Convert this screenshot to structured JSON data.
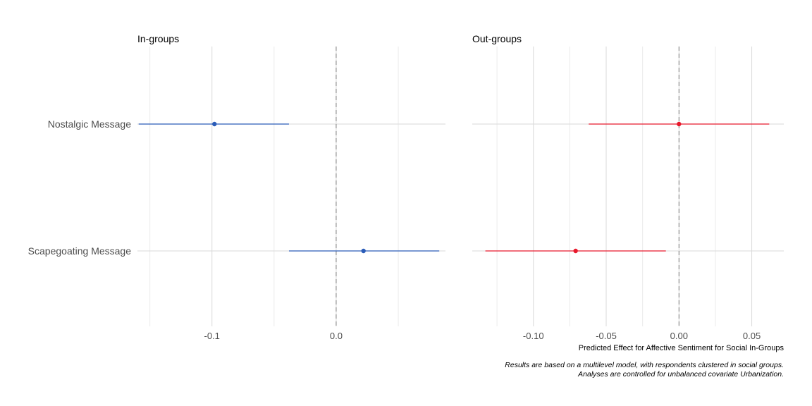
{
  "chart_data": [
    {
      "type": "scatter",
      "subtype": "coefficient-plot",
      "title": "In-groups",
      "color": "#2a5cb8",
      "categories": [
        "Nostalgic Message",
        "Scapegoating Message"
      ],
      "estimates": [
        -0.098,
        0.022
      ],
      "ci_low": [
        -0.159,
        -0.038
      ],
      "ci_high": [
        -0.038,
        0.083
      ],
      "xticks": [
        -0.1,
        0.0
      ],
      "xtick_labels": [
        "-0.1",
        "0.0"
      ],
      "xlim": [
        -0.16,
        0.088
      ],
      "reference_line": 0,
      "grid": true
    },
    {
      "type": "scatter",
      "subtype": "coefficient-plot",
      "title": "Out-groups",
      "color": "#e8192c",
      "categories": [
        "Nostalgic Message",
        "Scapegoating Message"
      ],
      "estimates": [
        0.0,
        -0.071
      ],
      "ci_low": [
        -0.062,
        -0.133
      ],
      "ci_high": [
        0.062,
        -0.009
      ],
      "xticks": [
        -0.1,
        -0.05,
        0.0,
        0.05
      ],
      "xtick_labels": [
        "-0.10",
        "-0.05",
        "0.00",
        "0.05"
      ],
      "xlim": [
        -0.142,
        0.072
      ],
      "reference_line": 0,
      "grid": true
    }
  ],
  "xlabel": "Predicted Effect for Affective Sentiment for Social In-Groups",
  "caption_lines": [
    "Results are based on a multilevel model, with respondents clustered in social groups.",
    "Analyses are controlled for unbalanced covariate Urbanization."
  ]
}
